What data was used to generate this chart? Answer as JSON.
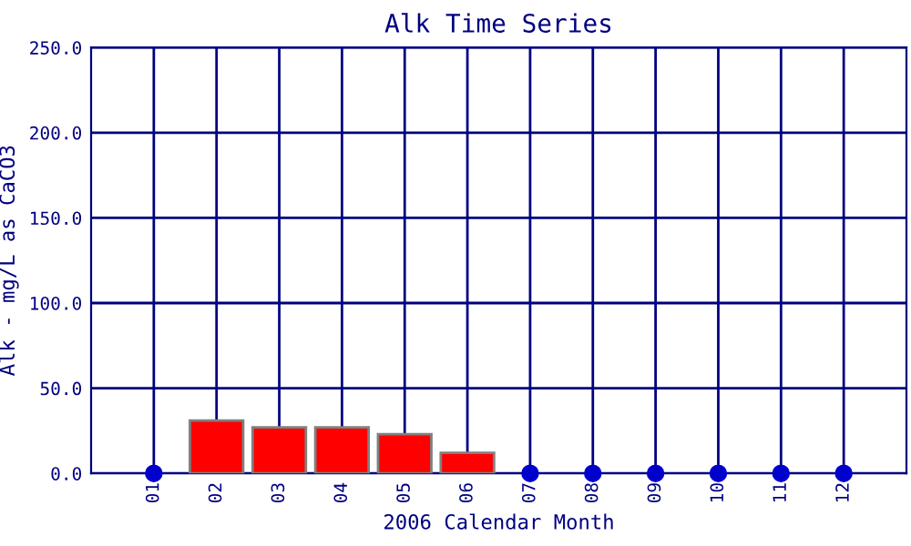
{
  "chart_data": {
    "type": "bar",
    "title": "Alk Time Series",
    "xlabel": "2006 Calendar Month",
    "ylabel": "Alk - mg/L as CaCO3",
    "categories": [
      "01",
      "02",
      "03",
      "04",
      "05",
      "06",
      "07",
      "08",
      "09",
      "10",
      "11",
      "12"
    ],
    "series": [
      {
        "color": "#ff0000",
        "values": [
          null,
          31,
          27,
          27,
          23,
          12,
          null,
          null,
          null,
          null,
          null,
          null
        ]
      },
      {
        "type": "scatter",
        "color": "#0000cc",
        "values": [
          0,
          null,
          null,
          null,
          null,
          null,
          0,
          0,
          0,
          0,
          0,
          0
        ]
      }
    ],
    "ylim": [
      0,
      250
    ],
    "yticks": [
      {
        "value": 0,
        "label": "0.0"
      },
      {
        "value": 50,
        "label": "50.0"
      },
      {
        "value": 100,
        "label": "100.0"
      },
      {
        "value": 150,
        "label": "150.0"
      },
      {
        "value": 200,
        "label": "200.0"
      },
      {
        "value": 250,
        "label": "250.0"
      }
    ],
    "grid": true,
    "marker": "circle"
  }
}
